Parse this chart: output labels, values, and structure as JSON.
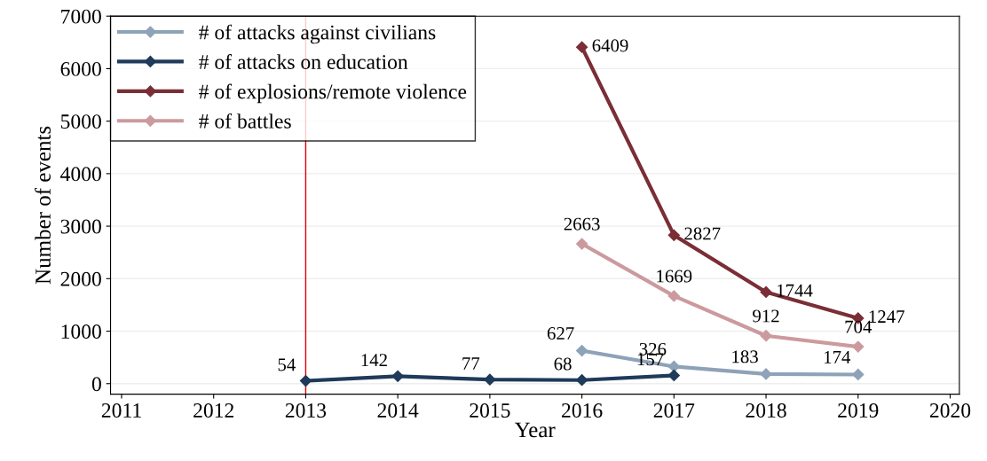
{
  "chart_data": {
    "type": "line",
    "xlabel": "Year",
    "ylabel": "Number of events",
    "series": [
      {
        "name": "# of attacks against civilians",
        "color": "#8ea2b8",
        "x": [
          2016,
          2017,
          2018,
          2019
        ],
        "values": [
          627,
          326,
          183,
          174
        ]
      },
      {
        "name": "# of attacks on education",
        "color": "#1f3a5a",
        "x": [
          2013,
          2014,
          2015,
          2016,
          2017
        ],
        "values": [
          54,
          142,
          77,
          68,
          157
        ]
      },
      {
        "name": "# of explosions/remote violence",
        "color": "#7a2e35",
        "x": [
          2016,
          2017,
          2018,
          2019
        ],
        "values": [
          6409,
          2827,
          1744,
          1247
        ]
      },
      {
        "name": "# of battles",
        "color": "#cc9a9e",
        "x": [
          2016,
          2017,
          2018,
          2019
        ],
        "values": [
          2663,
          1669,
          912,
          704
        ]
      }
    ],
    "xlim": [
      2010.88,
      2020.1
    ],
    "xticks": [
      2011,
      2012,
      2013,
      2014,
      2015,
      2016,
      2017,
      2018,
      2019,
      2020
    ],
    "ylim": [
      -200,
      7000
    ],
    "yticks": [
      0,
      1000,
      2000,
      3000,
      4000,
      5000,
      6000,
      7000
    ],
    "ref_lines": [
      {
        "axis": "x",
        "value": 2013,
        "color": "#e00000"
      }
    ],
    "grid": "y",
    "legend": "top left",
    "marker": "diamond",
    "line_style": "solid",
    "data_labels": true
  }
}
